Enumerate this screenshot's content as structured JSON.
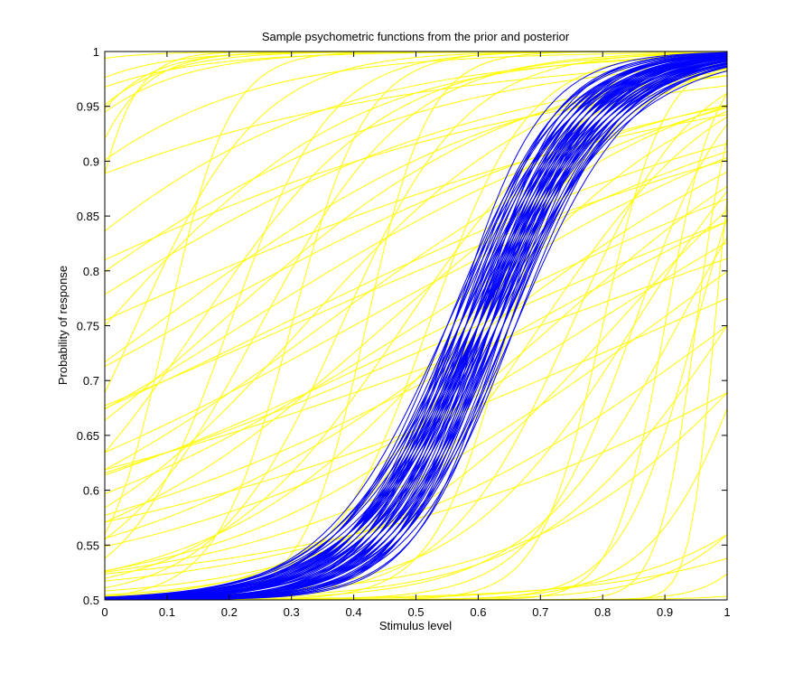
{
  "chart_data": {
    "type": "line",
    "title": "Sample psychometric functions from the prior and posterior",
    "xlabel": "Stimulus level",
    "ylabel": "Probability of response",
    "xlim": [
      0,
      1
    ],
    "ylim": [
      0.5,
      1
    ],
    "x_ticks": [
      0,
      0.1,
      0.2,
      0.3,
      0.4,
      0.5,
      0.6,
      0.7,
      0.8,
      0.9,
      1
    ],
    "y_ticks": [
      0.5,
      0.55,
      0.6,
      0.65,
      0.7,
      0.75,
      0.8,
      0.85,
      0.9,
      0.95,
      1
    ],
    "x_tick_labels": [
      "0",
      "0.1",
      "0.2",
      "0.3",
      "0.4",
      "0.5",
      "0.6",
      "0.7",
      "0.8",
      "0.9",
      "1"
    ],
    "y_tick_labels": [
      "0.5",
      "0.55",
      "0.6",
      "0.65",
      "0.7",
      "0.75",
      "0.8",
      "0.85",
      "0.9",
      "0.95",
      "1"
    ],
    "grid": false,
    "legend": "none",
    "model": "p(x) = 0.5 + 0.5 / (1 + exp(-(x - threshold) / width))",
    "series": [
      {
        "color": "#ffff00",
        "params": [
          [
            -0.3,
            0.1
          ],
          [
            -0.25,
            0.12
          ],
          [
            -0.35,
            0.08
          ],
          [
            -0.2,
            0.09
          ],
          [
            -0.15,
            0.07
          ],
          [
            -0.1,
            0.06
          ],
          [
            -0.4,
            0.15
          ],
          [
            -0.28,
            0.2
          ],
          [
            -0.18,
            0.25
          ],
          [
            -0.05,
            0.04
          ],
          [
            -0.12,
            0.3
          ],
          [
            -0.5,
            0.4
          ],
          [
            -0.08,
            0.35
          ],
          [
            -0.22,
            0.45
          ],
          [
            -0.02,
            0.5
          ],
          [
            0.0,
            0.2
          ],
          [
            0.05,
            0.1
          ],
          [
            0.08,
            0.3
          ],
          [
            0.1,
            0.05
          ],
          [
            0.12,
            0.4
          ],
          [
            0.15,
            0.15
          ],
          [
            0.18,
            0.25
          ],
          [
            0.2,
            0.08
          ],
          [
            0.22,
            0.35
          ],
          [
            0.25,
            0.12
          ],
          [
            0.28,
            0.45
          ],
          [
            0.3,
            0.06
          ],
          [
            0.32,
            0.2
          ],
          [
            0.35,
            0.3
          ],
          [
            0.38,
            0.1
          ],
          [
            0.4,
            0.4
          ],
          [
            0.42,
            0.05
          ],
          [
            0.45,
            0.25
          ],
          [
            0.48,
            0.15
          ],
          [
            0.5,
            0.35
          ],
          [
            0.52,
            0.08
          ],
          [
            0.55,
            0.45
          ],
          [
            0.58,
            0.2
          ],
          [
            0.6,
            0.12
          ],
          [
            0.62,
            0.3
          ],
          [
            0.65,
            0.06
          ],
          [
            0.68,
            0.4
          ],
          [
            0.7,
            0.15
          ],
          [
            0.72,
            0.25
          ],
          [
            0.75,
            0.1
          ],
          [
            0.78,
            0.35
          ],
          [
            0.8,
            0.05
          ],
          [
            0.82,
            0.2
          ],
          [
            0.85,
            0.08
          ],
          [
            0.88,
            0.3
          ],
          [
            0.9,
            0.04
          ],
          [
            0.92,
            0.12
          ],
          [
            0.95,
            0.06
          ],
          [
            0.98,
            0.02
          ],
          [
            1.0,
            0.15
          ],
          [
            1.05,
            0.08
          ],
          [
            1.1,
            0.2
          ],
          [
            1.15,
            0.05
          ],
          [
            1.2,
            0.1
          ],
          [
            1.3,
            0.15
          ],
          [
            1.4,
            0.08
          ],
          [
            1.5,
            0.2
          ],
          [
            0.3,
            0.5
          ],
          [
            0.6,
            0.5
          ],
          [
            0.9,
            0.5
          ],
          [
            1.2,
            0.4
          ],
          [
            1.0,
            0.3
          ],
          [
            0.7,
            0.6
          ],
          [
            0.85,
            0.14
          ],
          [
            0.95,
            0.03
          ]
        ]
      },
      {
        "color": "#0000ff",
        "params": [
          [
            0.6,
            0.08
          ],
          [
            0.62,
            0.085
          ],
          [
            0.58,
            0.09
          ],
          [
            0.61,
            0.07
          ],
          [
            0.59,
            0.095
          ],
          [
            0.63,
            0.075
          ],
          [
            0.57,
            0.1
          ],
          [
            0.64,
            0.08
          ],
          [
            0.6,
            0.11
          ],
          [
            0.56,
            0.085
          ],
          [
            0.65,
            0.09
          ],
          [
            0.58,
            0.07
          ],
          [
            0.62,
            0.1
          ],
          [
            0.59,
            0.08
          ],
          [
            0.61,
            0.095
          ],
          [
            0.55,
            0.09
          ],
          [
            0.66,
            0.085
          ],
          [
            0.6,
            0.065
          ],
          [
            0.63,
            0.105
          ],
          [
            0.57,
            0.075
          ],
          [
            0.64,
            0.095
          ],
          [
            0.58,
            0.11
          ],
          [
            0.62,
            0.07
          ],
          [
            0.6,
            0.09
          ],
          [
            0.59,
            0.1
          ],
          [
            0.61,
            0.08
          ],
          [
            0.56,
            0.095
          ],
          [
            0.65,
            0.075
          ],
          [
            0.62,
            0.115
          ],
          [
            0.57,
            0.085
          ],
          [
            0.63,
            0.09
          ],
          [
            0.6,
            0.1
          ],
          [
            0.58,
            0.08
          ],
          [
            0.64,
            0.07
          ],
          [
            0.61,
            0.105
          ],
          [
            0.59,
            0.09
          ],
          [
            0.62,
            0.08
          ],
          [
            0.6,
            0.095
          ],
          [
            0.57,
            0.105
          ],
          [
            0.63,
            0.085
          ],
          [
            0.6,
            0.075
          ],
          [
            0.55,
            0.1
          ],
          [
            0.66,
            0.095
          ],
          [
            0.58,
            0.09
          ],
          [
            0.61,
            0.085
          ],
          [
            0.62,
            0.095
          ],
          [
            0.59,
            0.075
          ],
          [
            0.64,
            0.1
          ],
          [
            0.56,
            0.08
          ],
          [
            0.6,
            0.105
          ],
          [
            0.63,
            0.08
          ],
          [
            0.57,
            0.09
          ],
          [
            0.61,
            0.11
          ],
          [
            0.65,
            0.085
          ],
          [
            0.58,
            0.095
          ],
          [
            0.62,
            0.075
          ],
          [
            0.6,
            0.085
          ],
          [
            0.59,
            0.11
          ],
          [
            0.64,
            0.09
          ],
          [
            0.56,
            0.07
          ]
        ]
      }
    ]
  }
}
